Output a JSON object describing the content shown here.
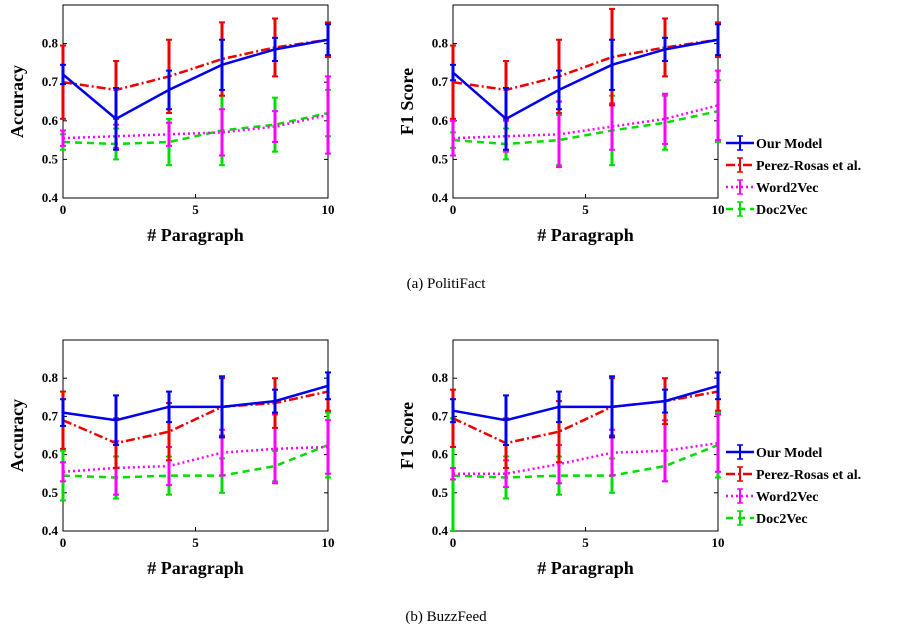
{
  "colors": {
    "our_model": "#0000ee",
    "perez_rosas": "#ee0000",
    "word2vec": "#ff00ff",
    "doc2vec": "#00dd00"
  },
  "legend": {
    "items": [
      {
        "label": "Our Model",
        "key": "our_model"
      },
      {
        "label": "Perez-Rosas et al.",
        "key": "perez_rosas"
      },
      {
        "label": "Word2Vec",
        "key": "word2vec"
      },
      {
        "label": "Doc2Vec",
        "key": "doc2vec"
      }
    ]
  },
  "captions": {
    "a": "(a) PolitiFact",
    "b": "(b) BuzzFeed"
  },
  "chart_data": [
    {
      "type": "line",
      "xlabel": "# Paragraph",
      "ylabel": "Accuracy",
      "xlim": [
        0,
        10
      ],
      "ylim": [
        0.4,
        0.9
      ],
      "xticks": [
        "0",
        "5",
        "10"
      ],
      "yticks": [
        "0.4",
        "0.5",
        "0.6",
        "0.7",
        "0.8"
      ],
      "x": [
        0,
        2,
        4,
        6,
        8,
        10
      ],
      "series": [
        {
          "name": "Our Model",
          "key": "our_model",
          "values": [
            0.72,
            0.605,
            0.68,
            0.745,
            0.785,
            0.81
          ],
          "err": [
            0.025,
            0.08,
            0.05,
            0.065,
            0.03,
            0.04
          ]
        },
        {
          "name": "Perez-Rosas et al.",
          "key": "perez_rosas",
          "values": [
            0.7,
            0.68,
            0.715,
            0.76,
            0.79,
            0.81
          ],
          "err": [
            0.095,
            0.075,
            0.095,
            0.095,
            0.075,
            0.045
          ]
        },
        {
          "name": "Word2Vec",
          "key": "word2vec",
          "values": [
            0.555,
            0.56,
            0.565,
            0.57,
            0.585,
            0.615
          ],
          "err": [
            0.02,
            0.03,
            0.03,
            0.06,
            0.04,
            0.1
          ]
        },
        {
          "name": "Doc2Vec",
          "key": "doc2vec",
          "values": [
            0.545,
            0.54,
            0.545,
            0.575,
            0.59,
            0.62
          ],
          "err": [
            0.02,
            0.04,
            0.06,
            0.09,
            0.07,
            0.06
          ]
        }
      ]
    },
    {
      "type": "line",
      "xlabel": "# Paragraph",
      "ylabel": "F1 Score",
      "xlim": [
        0,
        10
      ],
      "ylim": [
        0.4,
        0.9
      ],
      "xticks": [
        "0",
        "5",
        "10"
      ],
      "yticks": [
        "0.4",
        "0.5",
        "0.6",
        "0.7",
        "0.8"
      ],
      "x": [
        0,
        2,
        4,
        6,
        8,
        10
      ],
      "series": [
        {
          "name": "Our Model",
          "key": "our_model",
          "values": [
            0.725,
            0.605,
            0.68,
            0.745,
            0.785,
            0.81
          ],
          "err": [
            0.02,
            0.08,
            0.05,
            0.065,
            0.03,
            0.04
          ]
        },
        {
          "name": "Perez-Rosas et al.",
          "key": "perez_rosas",
          "values": [
            0.7,
            0.68,
            0.715,
            0.765,
            0.79,
            0.81
          ],
          "err": [
            0.095,
            0.075,
            0.095,
            0.125,
            0.075,
            0.045
          ]
        },
        {
          "name": "Word2Vec",
          "key": "word2vec",
          "values": [
            0.555,
            0.56,
            0.565,
            0.585,
            0.605,
            0.64
          ],
          "err": [
            0.045,
            0.04,
            0.085,
            0.06,
            0.065,
            0.09
          ]
        },
        {
          "name": "Doc2Vec",
          "key": "doc2vec",
          "values": [
            0.55,
            0.54,
            0.55,
            0.575,
            0.595,
            0.625
          ],
          "err": [
            0.02,
            0.04,
            0.065,
            0.09,
            0.07,
            0.08
          ]
        }
      ]
    },
    {
      "type": "line",
      "xlabel": "# Paragraph",
      "ylabel": "Accuracy",
      "xlim": [
        0,
        10
      ],
      "ylim": [
        0.4,
        0.9
      ],
      "xticks": [
        "0",
        "5",
        "10"
      ],
      "yticks": [
        "0.4",
        "0.5",
        "0.6",
        "0.7",
        "0.8"
      ],
      "x": [
        0,
        2,
        4,
        6,
        8,
        10
      ],
      "series": [
        {
          "name": "Our Model",
          "key": "our_model",
          "values": [
            0.71,
            0.69,
            0.725,
            0.725,
            0.74,
            0.78
          ],
          "err": [
            0.035,
            0.065,
            0.04,
            0.08,
            0.03,
            0.035
          ]
        },
        {
          "name": "Perez-Rosas et al.",
          "key": "perez_rosas",
          "values": [
            0.69,
            0.63,
            0.66,
            0.725,
            0.735,
            0.765
          ],
          "err": [
            0.075,
            0.065,
            0.075,
            0.075,
            0.065,
            0.05
          ]
        },
        {
          "name": "Word2Vec",
          "key": "word2vec",
          "values": [
            0.555,
            0.565,
            0.57,
            0.605,
            0.615,
            0.62
          ],
          "err": [
            0.025,
            0.07,
            0.05,
            0.06,
            0.09,
            0.07
          ]
        },
        {
          "name": "Doc2Vec",
          "key": "doc2vec",
          "values": [
            0.545,
            0.54,
            0.545,
            0.545,
            0.57,
            0.625
          ],
          "err": [
            0.065,
            0.055,
            0.05,
            0.045,
            0.04,
            0.085
          ]
        }
      ]
    },
    {
      "type": "line",
      "xlabel": "# Paragraph",
      "ylabel": "F1 Score",
      "xlim": [
        0,
        10
      ],
      "ylim": [
        0.4,
        0.9
      ],
      "xticks": [
        "0",
        "5",
        "10"
      ],
      "yticks": [
        "0.4",
        "0.5",
        "0.6",
        "0.7",
        "0.8"
      ],
      "x": [
        0,
        2,
        4,
        6,
        8,
        10
      ],
      "series": [
        {
          "name": "Our Model",
          "key": "our_model",
          "values": [
            0.715,
            0.69,
            0.725,
            0.725,
            0.74,
            0.78
          ],
          "err": [
            0.03,
            0.065,
            0.04,
            0.08,
            0.03,
            0.035
          ]
        },
        {
          "name": "Perez-Rosas et al.",
          "key": "perez_rosas",
          "values": [
            0.695,
            0.63,
            0.66,
            0.725,
            0.74,
            0.765
          ],
          "err": [
            0.075,
            0.065,
            0.08,
            0.075,
            0.06,
            0.05
          ]
        },
        {
          "name": "Word2Vec",
          "key": "word2vec",
          "values": [
            0.55,
            0.55,
            0.575,
            0.605,
            0.61,
            0.63
          ],
          "err": [
            0.015,
            0.035,
            0.05,
            0.06,
            0.08,
            0.075
          ]
        },
        {
          "name": "Doc2Vec",
          "key": "doc2vec",
          "values": [
            0.545,
            0.54,
            0.545,
            0.545,
            0.57,
            0.625
          ],
          "err": [
            0.15,
            0.055,
            0.05,
            0.045,
            0.04,
            0.085
          ]
        }
      ]
    }
  ]
}
